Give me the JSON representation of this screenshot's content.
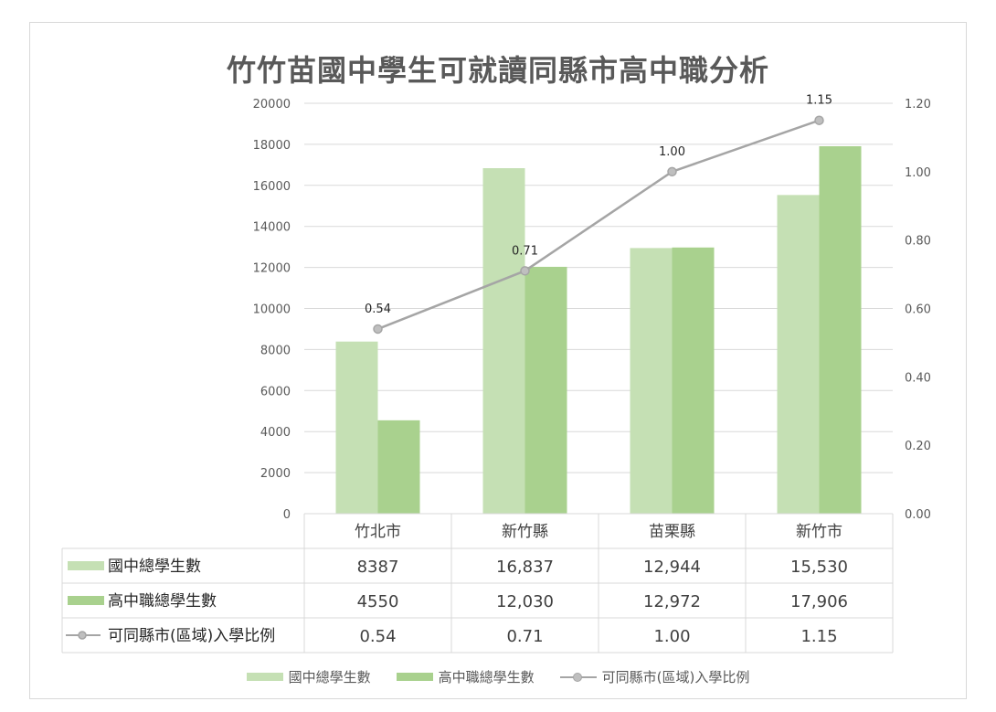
{
  "chart_data": {
    "type": "bar",
    "title": "竹竹苗國中學生可就讀同縣市高中職分析",
    "categories": [
      "竹北市",
      "新竹縣",
      "苗栗縣",
      "新竹市"
    ],
    "series": [
      {
        "name": "國中總學生數",
        "type": "bar",
        "axis": "left",
        "color": "#c5e0b4",
        "values": [
          8387,
          16837,
          12944,
          15530
        ],
        "table_labels": [
          "8387",
          "16,837",
          "12,944",
          "15,530"
        ]
      },
      {
        "name": "高中職總學生數",
        "type": "bar",
        "axis": "left",
        "color": "#a9d18e",
        "values": [
          4550,
          12030,
          12972,
          17906
        ],
        "table_labels": [
          "4550",
          "12,030",
          "12,972",
          "17,906"
        ]
      },
      {
        "name": "可同縣市(區域)入學比例",
        "type": "line",
        "axis": "right",
        "color": "#a5a5a5",
        "values": [
          0.54,
          0.71,
          1.0,
          1.15
        ],
        "point_labels": [
          "0.54",
          "0.71",
          "1.00",
          "1.15"
        ],
        "table_labels": [
          "0.54",
          "0.71",
          "1.00",
          "1.15"
        ]
      }
    ],
    "y_left": {
      "min": 0,
      "max": 20000,
      "step": 2000,
      "ticks": [
        "0",
        "2000",
        "4000",
        "6000",
        "8000",
        "10000",
        "12000",
        "14000",
        "16000",
        "18000",
        "20000"
      ]
    },
    "y_right": {
      "min": 0,
      "max": 1.2,
      "step": 0.2,
      "ticks": [
        "0.00",
        "0.20",
        "0.40",
        "0.60",
        "0.80",
        "1.00",
        "1.20"
      ]
    },
    "grid": true,
    "legend_position": "bottom",
    "data_table": true
  }
}
